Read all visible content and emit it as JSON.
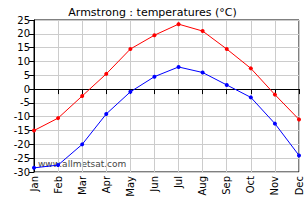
{
  "chart_data": {
    "type": "line",
    "title": "Armstrong : temperatures (°C)",
    "categories": [
      "Jan",
      "Feb",
      "Mar",
      "Apr",
      "May",
      "Jun",
      "Jul",
      "Aug",
      "Sep",
      "Oct",
      "Nov",
      "Dec"
    ],
    "series": [
      {
        "color": "#ff0000",
        "values": [
          -15,
          -10.5,
          -2.5,
          5.5,
          14.5,
          19.5,
          23.5,
          21,
          14.5,
          7.5,
          -2,
          -11
        ]
      },
      {
        "color": "#0000ff",
        "values": [
          -28.5,
          -27.5,
          -20,
          -9,
          -1,
          4.5,
          8,
          6,
          1.5,
          -3,
          -12.5,
          -24
        ]
      }
    ],
    "ylim": [
      -30,
      25
    ],
    "yticks": [
      -30,
      -25,
      -20,
      -15,
      -10,
      -5,
      0,
      5,
      10,
      15,
      20,
      25
    ],
    "grid": true,
    "marker": "circle",
    "annotations": [
      "www.allmetsat.com"
    ]
  }
}
